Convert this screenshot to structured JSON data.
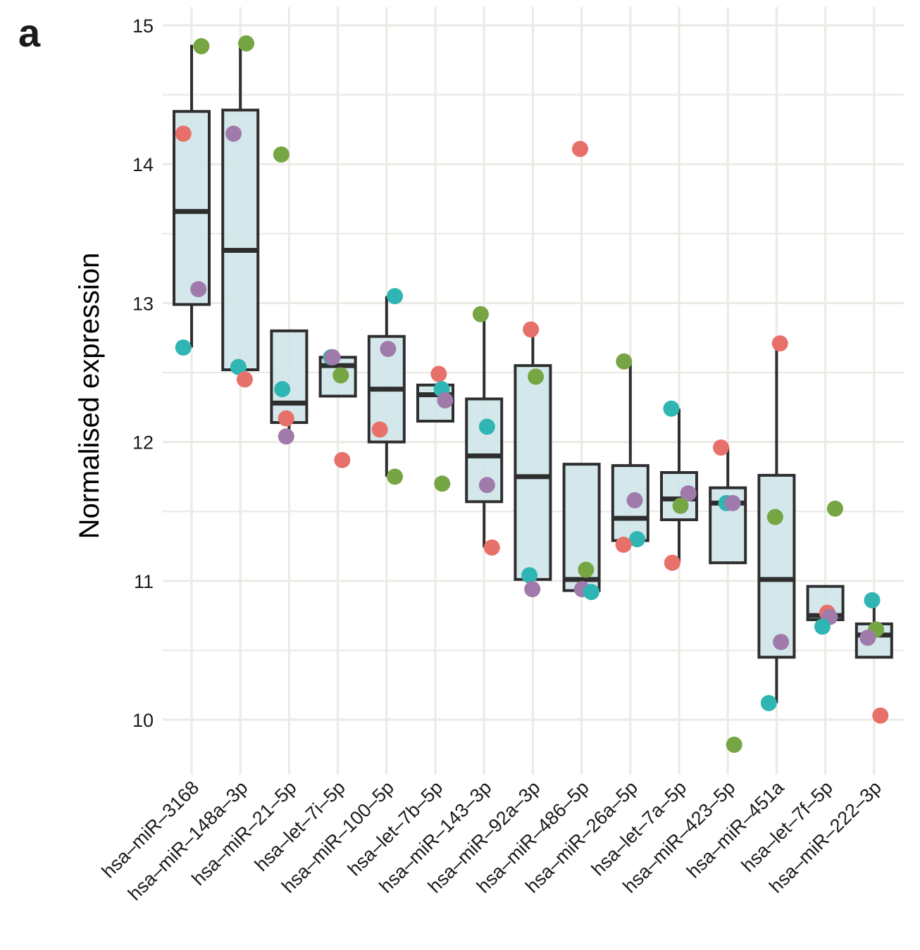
{
  "panel_label": "a",
  "chart_data": {
    "type": "boxplot",
    "title": "",
    "xlabel": "",
    "ylabel": "Normalised expression",
    "ylim": [
      9.62,
      15.1
    ],
    "yticks": [
      10,
      11,
      12,
      13,
      14,
      15
    ],
    "grid": true,
    "legend": "none",
    "box_fill": "#cfe6ea",
    "box_stroke": "#2e2e2e",
    "grid_color": "#ebebe6",
    "point_colors": {
      "red": "#e8706a",
      "green": "#76a643",
      "teal": "#2fb5b3",
      "purple": "#a07aab"
    },
    "categories": [
      "hsa–miR–3168",
      "hsa–miR–148a–3p",
      "hsa–miR–21–5p",
      "hsa–let–7i–5p",
      "hsa–miR–100–5p",
      "hsa–let–7b–5p",
      "hsa–miR–143–3p",
      "hsa–miR–92a–3p",
      "hsa–miR–486–5p",
      "hsa–miR–26a–5p",
      "hsa–let–7a–5p",
      "hsa–miR–423–5p",
      "hsa–miR–451a",
      "hsa–let–7f–5p",
      "hsa–miR–222–3p"
    ],
    "boxes": [
      {
        "low": 12.68,
        "q1": 12.99,
        "median": 13.66,
        "q3": 14.38,
        "high": 14.86
      },
      {
        "low": 12.52,
        "q1": 12.52,
        "median": 13.38,
        "q3": 14.39,
        "high": 14.86
      },
      {
        "low": 12.04,
        "q1": 12.14,
        "median": 12.28,
        "q3": 12.8,
        "high": 12.8
      },
      {
        "low": 12.33,
        "q1": 12.33,
        "median": 12.55,
        "q3": 12.61,
        "high": 12.61
      },
      {
        "low": 11.75,
        "q1": 12.0,
        "median": 12.38,
        "q3": 12.76,
        "high": 13.05
      },
      {
        "low": 12.15,
        "q1": 12.15,
        "median": 12.34,
        "q3": 12.41,
        "high": 12.41
      },
      {
        "low": 11.24,
        "q1": 11.57,
        "median": 11.9,
        "q3": 12.31,
        "high": 12.92
      },
      {
        "low": 11.01,
        "q1": 11.01,
        "median": 11.75,
        "q3": 12.55,
        "high": 12.81
      },
      {
        "low": 10.93,
        "q1": 10.93,
        "median": 11.01,
        "q3": 11.84,
        "high": 11.84
      },
      {
        "low": 11.29,
        "q1": 11.29,
        "median": 11.45,
        "q3": 11.83,
        "high": 12.58
      },
      {
        "low": 11.13,
        "q1": 11.44,
        "median": 11.59,
        "q3": 11.78,
        "high": 12.24
      },
      {
        "low": 11.13,
        "q1": 11.13,
        "median": 11.56,
        "q3": 11.67,
        "high": 11.96
      },
      {
        "low": 10.12,
        "q1": 10.45,
        "median": 11.01,
        "q3": 11.76,
        "high": 12.71
      },
      {
        "low": 10.72,
        "q1": 10.72,
        "median": 10.75,
        "q3": 10.96,
        "high": 10.96
      },
      {
        "low": 10.45,
        "q1": 10.45,
        "median": 10.61,
        "q3": 10.69,
        "high": 10.86
      }
    ],
    "points": [
      [
        {
          "c": "red",
          "v": 14.22,
          "j": -0.17
        },
        {
          "c": "green",
          "v": 14.85,
          "j": 0.2
        },
        {
          "c": "purple",
          "v": 13.1,
          "j": 0.14
        },
        {
          "c": "teal",
          "v": 12.68,
          "j": -0.17
        }
      ],
      [
        {
          "c": "green",
          "v": 14.87,
          "j": 0.12
        },
        {
          "c": "purple",
          "v": 14.22,
          "j": -0.14
        },
        {
          "c": "teal",
          "v": 12.54,
          "j": -0.04
        },
        {
          "c": "red",
          "v": 12.45,
          "j": 0.09
        }
      ],
      [
        {
          "c": "green",
          "v": 14.07,
          "j": -0.16
        },
        {
          "c": "teal",
          "v": 12.38,
          "j": -0.14
        },
        {
          "c": "red",
          "v": 12.17,
          "j": -0.06
        },
        {
          "c": "purple",
          "v": 12.04,
          "j": -0.06
        }
      ],
      [
        {
          "c": "teal",
          "v": 12.61,
          "j": -0.14
        },
        {
          "c": "purple",
          "v": 12.61,
          "j": -0.11
        },
        {
          "c": "green",
          "v": 12.48,
          "j": 0.06
        },
        {
          "c": "red",
          "v": 11.87,
          "j": 0.09
        }
      ],
      [
        {
          "c": "teal",
          "v": 13.05,
          "j": 0.17
        },
        {
          "c": "purple",
          "v": 12.67,
          "j": 0.03
        },
        {
          "c": "red",
          "v": 12.09,
          "j": -0.14
        },
        {
          "c": "green",
          "v": 11.75,
          "j": 0.17
        }
      ],
      [
        {
          "c": "red",
          "v": 12.49,
          "j": 0.07
        },
        {
          "c": "teal",
          "v": 12.38,
          "j": 0.13
        },
        {
          "c": "purple",
          "v": 12.3,
          "j": 0.2
        },
        {
          "c": "green",
          "v": 11.7,
          "j": 0.14
        }
      ],
      [
        {
          "c": "green",
          "v": 12.92,
          "j": -0.07
        },
        {
          "c": "teal",
          "v": 12.11,
          "j": 0.06
        },
        {
          "c": "purple",
          "v": 11.69,
          "j": 0.06
        },
        {
          "c": "red",
          "v": 11.24,
          "j": 0.16
        }
      ],
      [
        {
          "c": "red",
          "v": 12.81,
          "j": -0.04
        },
        {
          "c": "green",
          "v": 12.47,
          "j": 0.06
        },
        {
          "c": "teal",
          "v": 11.04,
          "j": -0.07
        },
        {
          "c": "purple",
          "v": 10.94,
          "j": -0.01
        }
      ],
      [
        {
          "c": "red",
          "v": 14.11,
          "j": -0.03
        },
        {
          "c": "green",
          "v": 11.08,
          "j": 0.09
        },
        {
          "c": "purple",
          "v": 10.94,
          "j": 0.01
        },
        {
          "c": "teal",
          "v": 10.92,
          "j": 0.2
        }
      ],
      [
        {
          "c": "green",
          "v": 12.58,
          "j": -0.13
        },
        {
          "c": "purple",
          "v": 11.58,
          "j": 0.09
        },
        {
          "c": "teal",
          "v": 11.3,
          "j": 0.14
        },
        {
          "c": "red",
          "v": 11.26,
          "j": -0.14
        }
      ],
      [
        {
          "c": "teal",
          "v": 12.24,
          "j": -0.16
        },
        {
          "c": "purple",
          "v": 11.63,
          "j": 0.19
        },
        {
          "c": "green",
          "v": 11.54,
          "j": 0.03
        },
        {
          "c": "red",
          "v": 11.13,
          "j": -0.14
        }
      ],
      [
        {
          "c": "red",
          "v": 11.96,
          "j": -0.14
        },
        {
          "c": "teal",
          "v": 11.56,
          "j": -0.03
        },
        {
          "c": "purple",
          "v": 11.56,
          "j": 0.1
        },
        {
          "c": "green",
          "v": 9.82,
          "j": 0.13
        }
      ],
      [
        {
          "c": "red",
          "v": 12.71,
          "j": 0.07
        },
        {
          "c": "green",
          "v": 11.46,
          "j": -0.03
        },
        {
          "c": "purple",
          "v": 10.56,
          "j": 0.09
        },
        {
          "c": "teal",
          "v": 10.12,
          "j": -0.16
        }
      ],
      [
        {
          "c": "green",
          "v": 11.52,
          "j": 0.2
        },
        {
          "c": "red",
          "v": 10.77,
          "j": 0.04
        },
        {
          "c": "purple",
          "v": 10.74,
          "j": 0.09
        },
        {
          "c": "teal",
          "v": 10.67,
          "j": -0.06
        }
      ],
      [
        {
          "c": "teal",
          "v": 10.86,
          "j": -0.04
        },
        {
          "c": "green",
          "v": 10.65,
          "j": 0.04
        },
        {
          "c": "purple",
          "v": 10.59,
          "j": -0.13
        },
        {
          "c": "red",
          "v": 10.03,
          "j": 0.13
        }
      ]
    ]
  }
}
